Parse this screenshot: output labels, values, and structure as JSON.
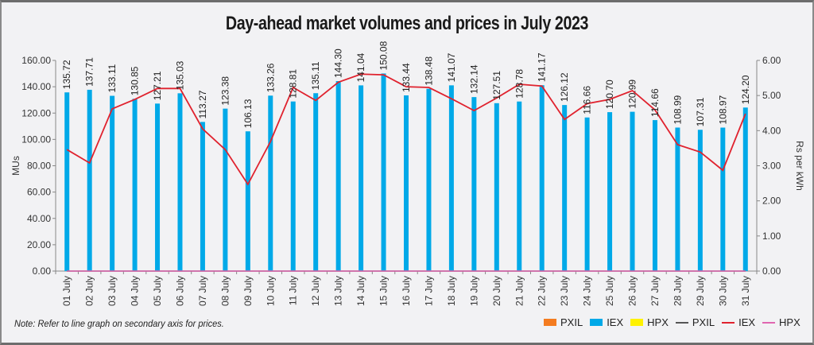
{
  "chart_data": {
    "type": "bar+line",
    "title": "Day-ahead market volumes and prices in July 2023",
    "categories": [
      "01 July",
      "02 July",
      "03 July",
      "04 July",
      "05 July",
      "06 July",
      "07 July",
      "08 July",
      "09 July",
      "10 July",
      "11 July",
      "12 July",
      "13 July",
      "14 July",
      "15 July",
      "16 July",
      "17 July",
      "18 July",
      "19 July",
      "20 July",
      "21 July",
      "22 July",
      "23 July",
      "24 July",
      "25 July",
      "26 July",
      "27 July",
      "28 July",
      "29 July",
      "30 July",
      "31 July"
    ],
    "series": [
      {
        "name": "PXIL",
        "kind": "bar",
        "axis": "left",
        "color": "#f47c20",
        "values": [
          0,
          0,
          0,
          0,
          0,
          0,
          0,
          0,
          0,
          0,
          0,
          0,
          0,
          0,
          0,
          0,
          0,
          0,
          0,
          0,
          0,
          0,
          0,
          0,
          0,
          0,
          0,
          0,
          0,
          0,
          0
        ]
      },
      {
        "name": "IEX",
        "kind": "bar",
        "axis": "left",
        "color": "#00a9e8",
        "values": [
          135.72,
          137.71,
          133.11,
          130.85,
          127.21,
          135.03,
          113.27,
          123.38,
          106.13,
          133.26,
          128.81,
          135.11,
          144.3,
          141.04,
          150.08,
          133.44,
          138.48,
          141.07,
          132.14,
          127.51,
          128.78,
          141.17,
          126.12,
          116.66,
          120.7,
          120.99,
          114.66,
          108.99,
          107.31,
          108.97,
          124.2
        ],
        "data_labels": [
          "135.72",
          "137.71",
          "133.11",
          "130.85",
          "127.21",
          "135.03",
          "113.27",
          "123.38",
          "106.13",
          "133.26",
          "128.81",
          "135.11",
          "144.30",
          "141.04",
          "150.08",
          "133.44",
          "138.48",
          "141.07",
          "132.14",
          "127.51",
          "128.78",
          "141.17",
          "126.12",
          "116.66",
          "120.70",
          "120.99",
          "114.66",
          "108.99",
          "107.31",
          "108.97",
          "124.20"
        ]
      },
      {
        "name": "HPX",
        "kind": "bar",
        "axis": "left",
        "color": "#fff200",
        "values": [
          0,
          0,
          0,
          0,
          0,
          0,
          0,
          0,
          0,
          0,
          0,
          0,
          0,
          0,
          0,
          0,
          0,
          0,
          0,
          0,
          0,
          0,
          0,
          0,
          0,
          0,
          0,
          0,
          0,
          0,
          0
        ]
      },
      {
        "name": "PXIL",
        "kind": "line",
        "axis": "right",
        "color": "#555555",
        "values": [
          0,
          0,
          0,
          0,
          0,
          0,
          0,
          0,
          0,
          0,
          0,
          0,
          0,
          0,
          0,
          0,
          0,
          0,
          0,
          0,
          0,
          0,
          0,
          0,
          0,
          0,
          0,
          0,
          0,
          0,
          0
        ]
      },
      {
        "name": "IEX",
        "kind": "line",
        "axis": "right",
        "color": "#e0222e",
        "values": [
          3.46,
          3.08,
          4.62,
          4.89,
          5.2,
          5.2,
          4.05,
          3.46,
          2.47,
          3.69,
          5.23,
          4.86,
          5.38,
          5.61,
          5.59,
          5.25,
          5.23,
          4.91,
          4.57,
          4.93,
          5.32,
          5.27,
          4.32,
          4.77,
          4.89,
          5.14,
          4.59,
          3.6,
          3.39,
          2.87,
          4.48
        ]
      },
      {
        "name": "HPX",
        "kind": "line",
        "axis": "right",
        "color": "#e066b0",
        "values": [
          0,
          0,
          0,
          0,
          0,
          0,
          0,
          0,
          0,
          0,
          0,
          0,
          0,
          0,
          0,
          0,
          0,
          0,
          0,
          0,
          0,
          0,
          0,
          0,
          0,
          0,
          0,
          0,
          0,
          0,
          0
        ]
      }
    ],
    "ylabel": "MUs",
    "y2label": "Rs per kWh",
    "ylim": [
      0,
      160
    ],
    "y2lim": [
      0,
      6
    ],
    "yticks": [
      "0.00",
      "20.00",
      "40.00",
      "60.00",
      "80.00",
      "100.00",
      "120.00",
      "140.00",
      "160.00"
    ],
    "y2ticks": [
      "0.00",
      "1.00",
      "2.00",
      "3.00",
      "4.00",
      "5.00",
      "6.00"
    ],
    "grid": false,
    "legend_position": "bottom-right"
  },
  "note": "Note: Refer to line graph on secondary axis for prices.",
  "legend": [
    {
      "label": "PXIL",
      "kind": "box",
      "color": "#f47c20"
    },
    {
      "label": "IEX",
      "kind": "box",
      "color": "#00a9e8"
    },
    {
      "label": "HPX",
      "kind": "box",
      "color": "#fff200"
    },
    {
      "label": "PXIL",
      "kind": "line",
      "color": "#555555"
    },
    {
      "label": "IEX",
      "kind": "line",
      "color": "#e0222e"
    },
    {
      "label": "HPX",
      "kind": "line",
      "color": "#e066b0"
    }
  ]
}
